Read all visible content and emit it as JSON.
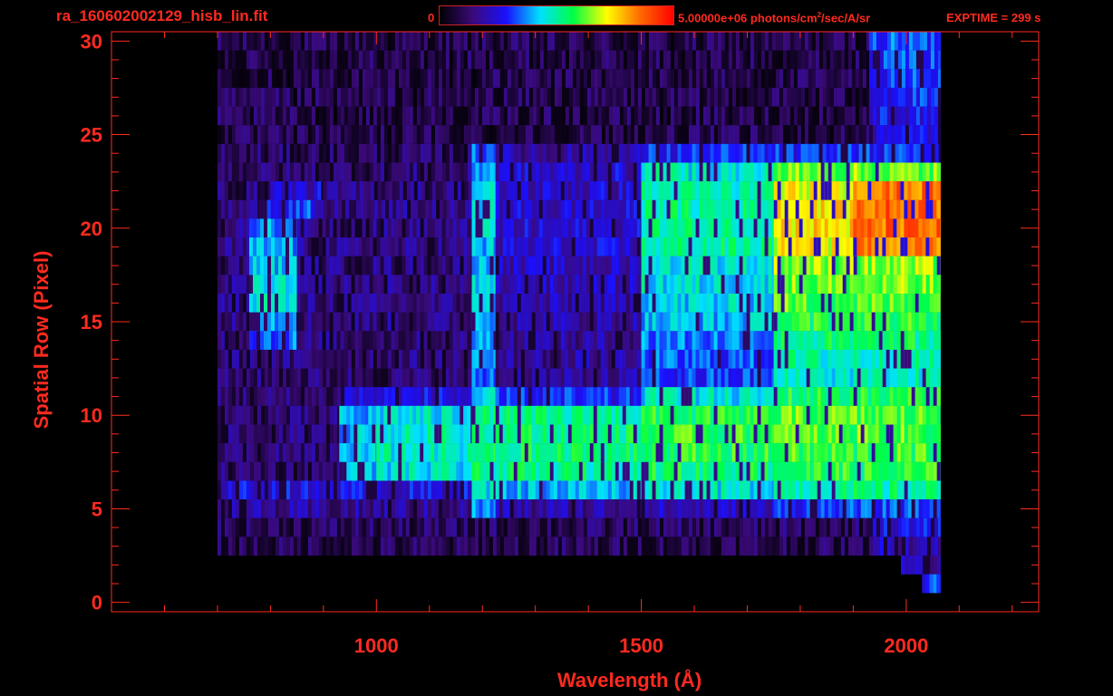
{
  "header": {
    "filename": "ra_160602002129_hisb_lin.fit",
    "colorbar_min": "0",
    "colorbar_max": "5.00000e+06",
    "colorbar_unit_pre": " photons/cm",
    "colorbar_unit_sup": "2",
    "colorbar_unit_post": "/sec/A/sr",
    "exptime": "EXPTIME = 299 s"
  },
  "colors": {
    "axis": "#ff2a1f",
    "background": "#000000",
    "colormap": [
      "#000000",
      "#3a0a7a",
      "#1a10ff",
      "#00e0ff",
      "#00ff44",
      "#ffff00",
      "#ff6a00",
      "#ff0000"
    ]
  },
  "chart_data": {
    "type": "heatmap",
    "title": "",
    "xlabel": "Wavelength (Å)",
    "ylabel": "Spatial Row (Pixel)",
    "xlim": [
      500,
      2250
    ],
    "ylim": [
      -0.5,
      30.5
    ],
    "x_ticks": [
      1000,
      1500,
      2000
    ],
    "y_ticks": [
      0,
      5,
      10,
      15,
      20,
      25,
      30
    ],
    "zlim": [
      0,
      5000000
    ],
    "zunit": "photons/cm^2/sec/A/sr",
    "x_extent": [
      700,
      2065
    ],
    "row_profiles": [
      {
        "row": 30,
        "segments": [
          [
            700,
            1930,
            0.08
          ],
          [
            1930,
            2065,
            0.32
          ]
        ]
      },
      {
        "row": 29,
        "segments": [
          [
            700,
            1930,
            0.08
          ],
          [
            1930,
            2065,
            0.3
          ]
        ]
      },
      {
        "row": 28,
        "segments": [
          [
            700,
            1930,
            0.08
          ],
          [
            1930,
            2065,
            0.3
          ]
        ]
      },
      {
        "row": 27,
        "segments": [
          [
            700,
            1930,
            0.08
          ],
          [
            1930,
            2065,
            0.28
          ]
        ]
      },
      {
        "row": 26,
        "segments": [
          [
            700,
            1930,
            0.08
          ],
          [
            1930,
            2065,
            0.26
          ]
        ]
      },
      {
        "row": 25,
        "segments": [
          [
            700,
            1930,
            0.08
          ],
          [
            1930,
            2065,
            0.24
          ]
        ]
      },
      {
        "row": 24,
        "segments": [
          [
            700,
            1180,
            0.1
          ],
          [
            1180,
            1225,
            0.35
          ],
          [
            1225,
            1500,
            0.18
          ],
          [
            1500,
            2065,
            0.28
          ]
        ]
      },
      {
        "row": 23,
        "segments": [
          [
            700,
            1180,
            0.12
          ],
          [
            1180,
            1225,
            0.4
          ],
          [
            1225,
            1500,
            0.22
          ],
          [
            1500,
            1750,
            0.45
          ],
          [
            1750,
            2065,
            0.62
          ]
        ]
      },
      {
        "row": 22,
        "segments": [
          [
            700,
            800,
            0.12
          ],
          [
            800,
            900,
            0.22
          ],
          [
            900,
            1180,
            0.14
          ],
          [
            1180,
            1225,
            0.42
          ],
          [
            1225,
            1500,
            0.22
          ],
          [
            1500,
            1750,
            0.48
          ],
          [
            1750,
            1900,
            0.7
          ],
          [
            1900,
            2065,
            0.84
          ]
        ]
      },
      {
        "row": 21,
        "segments": [
          [
            700,
            780,
            0.14
          ],
          [
            780,
            880,
            0.3
          ],
          [
            880,
            1180,
            0.14
          ],
          [
            1180,
            1225,
            0.42
          ],
          [
            1225,
            1500,
            0.22
          ],
          [
            1500,
            1750,
            0.5
          ],
          [
            1750,
            1900,
            0.72
          ],
          [
            1900,
            2065,
            0.86
          ]
        ]
      },
      {
        "row": 20,
        "segments": [
          [
            700,
            760,
            0.14
          ],
          [
            760,
            850,
            0.36
          ],
          [
            850,
            1180,
            0.14
          ],
          [
            1180,
            1225,
            0.42
          ],
          [
            1225,
            1500,
            0.22
          ],
          [
            1500,
            1750,
            0.5
          ],
          [
            1750,
            1900,
            0.74
          ],
          [
            1900,
            2065,
            0.85
          ]
        ]
      },
      {
        "row": 19,
        "segments": [
          [
            700,
            760,
            0.14
          ],
          [
            760,
            850,
            0.38
          ],
          [
            850,
            1180,
            0.14
          ],
          [
            1180,
            1225,
            0.4
          ],
          [
            1225,
            1500,
            0.22
          ],
          [
            1500,
            1750,
            0.5
          ],
          [
            1750,
            1900,
            0.7
          ],
          [
            1900,
            2065,
            0.82
          ]
        ]
      },
      {
        "row": 18,
        "segments": [
          [
            700,
            760,
            0.14
          ],
          [
            760,
            850,
            0.4
          ],
          [
            850,
            1180,
            0.14
          ],
          [
            1180,
            1225,
            0.4
          ],
          [
            1225,
            1500,
            0.2
          ],
          [
            1500,
            1750,
            0.45
          ],
          [
            1750,
            2065,
            0.64
          ]
        ]
      },
      {
        "row": 17,
        "segments": [
          [
            700,
            760,
            0.14
          ],
          [
            760,
            850,
            0.42
          ],
          [
            850,
            1180,
            0.14
          ],
          [
            1180,
            1225,
            0.4
          ],
          [
            1225,
            1500,
            0.2
          ],
          [
            1500,
            1750,
            0.44
          ],
          [
            1750,
            2065,
            0.62
          ]
        ]
      },
      {
        "row": 16,
        "segments": [
          [
            700,
            760,
            0.14
          ],
          [
            760,
            850,
            0.44
          ],
          [
            850,
            1180,
            0.14
          ],
          [
            1180,
            1225,
            0.4
          ],
          [
            1225,
            1500,
            0.18
          ],
          [
            1500,
            1750,
            0.42
          ],
          [
            1750,
            2065,
            0.6
          ]
        ]
      },
      {
        "row": 15,
        "segments": [
          [
            700,
            760,
            0.14
          ],
          [
            760,
            850,
            0.4
          ],
          [
            850,
            1180,
            0.14
          ],
          [
            1180,
            1225,
            0.4
          ],
          [
            1225,
            1500,
            0.18
          ],
          [
            1500,
            1750,
            0.4
          ],
          [
            1750,
            2065,
            0.56
          ]
        ]
      },
      {
        "row": 14,
        "segments": [
          [
            700,
            760,
            0.14
          ],
          [
            760,
            850,
            0.34
          ],
          [
            850,
            1180,
            0.13
          ],
          [
            1180,
            1225,
            0.38
          ],
          [
            1225,
            1500,
            0.17
          ],
          [
            1500,
            1750,
            0.36
          ],
          [
            1750,
            2065,
            0.52
          ]
        ]
      },
      {
        "row": 13,
        "segments": [
          [
            700,
            1180,
            0.13
          ],
          [
            1180,
            1225,
            0.36
          ],
          [
            1225,
            1500,
            0.16
          ],
          [
            1500,
            1750,
            0.32
          ],
          [
            1750,
            2065,
            0.48
          ]
        ]
      },
      {
        "row": 12,
        "segments": [
          [
            700,
            1180,
            0.12
          ],
          [
            1180,
            1225,
            0.34
          ],
          [
            1225,
            1500,
            0.16
          ],
          [
            1500,
            1750,
            0.3
          ],
          [
            1750,
            2065,
            0.46
          ]
        ]
      },
      {
        "row": 11,
        "segments": [
          [
            700,
            940,
            0.12
          ],
          [
            940,
            1180,
            0.24
          ],
          [
            1180,
            1225,
            0.4
          ],
          [
            1225,
            1500,
            0.28
          ],
          [
            1500,
            1750,
            0.44
          ],
          [
            1750,
            2065,
            0.55
          ]
        ]
      },
      {
        "row": 10,
        "segments": [
          [
            700,
            930,
            0.12
          ],
          [
            930,
            1000,
            0.38
          ],
          [
            1000,
            1180,
            0.44
          ],
          [
            1180,
            1225,
            0.5
          ],
          [
            1225,
            1500,
            0.5
          ],
          [
            1500,
            1750,
            0.55
          ],
          [
            1750,
            2065,
            0.6
          ]
        ]
      },
      {
        "row": 9,
        "segments": [
          [
            700,
            930,
            0.12
          ],
          [
            930,
            1000,
            0.4
          ],
          [
            1000,
            1180,
            0.46
          ],
          [
            1180,
            1225,
            0.52
          ],
          [
            1225,
            1500,
            0.52
          ],
          [
            1500,
            1750,
            0.57
          ],
          [
            1750,
            2065,
            0.6
          ]
        ]
      },
      {
        "row": 8,
        "segments": [
          [
            700,
            930,
            0.12
          ],
          [
            930,
            1000,
            0.4
          ],
          [
            1000,
            1180,
            0.46
          ],
          [
            1180,
            1225,
            0.52
          ],
          [
            1225,
            1500,
            0.52
          ],
          [
            1500,
            1750,
            0.56
          ],
          [
            1750,
            2065,
            0.58
          ]
        ]
      },
      {
        "row": 7,
        "segments": [
          [
            700,
            930,
            0.12
          ],
          [
            930,
            1000,
            0.38
          ],
          [
            1000,
            1180,
            0.44
          ],
          [
            1180,
            1225,
            0.5
          ],
          [
            1225,
            1500,
            0.5
          ],
          [
            1500,
            1750,
            0.53
          ],
          [
            1750,
            2065,
            0.56
          ]
        ]
      },
      {
        "row": 6,
        "segments": [
          [
            700,
            1180,
            0.24
          ],
          [
            1180,
            1225,
            0.44
          ],
          [
            1225,
            1500,
            0.4
          ],
          [
            1500,
            1750,
            0.44
          ],
          [
            1750,
            2065,
            0.5
          ]
        ]
      },
      {
        "row": 5,
        "segments": [
          [
            700,
            1180,
            0.16
          ],
          [
            1180,
            1225,
            0.36
          ],
          [
            1225,
            1500,
            0.18
          ],
          [
            1500,
            1750,
            0.2
          ],
          [
            1750,
            2065,
            0.3
          ]
        ]
      },
      {
        "row": 4,
        "segments": [
          [
            700,
            1930,
            0.1
          ],
          [
            1930,
            2065,
            0.24
          ]
        ]
      },
      {
        "row": 3,
        "segments": [
          [
            700,
            1930,
            0.09
          ],
          [
            1930,
            2065,
            0.2
          ]
        ]
      },
      {
        "row": 2,
        "segments": [
          [
            1990,
            2065,
            0.2
          ]
        ]
      },
      {
        "row": 1,
        "segments": [
          [
            2030,
            2065,
            0.3
          ]
        ]
      }
    ]
  }
}
